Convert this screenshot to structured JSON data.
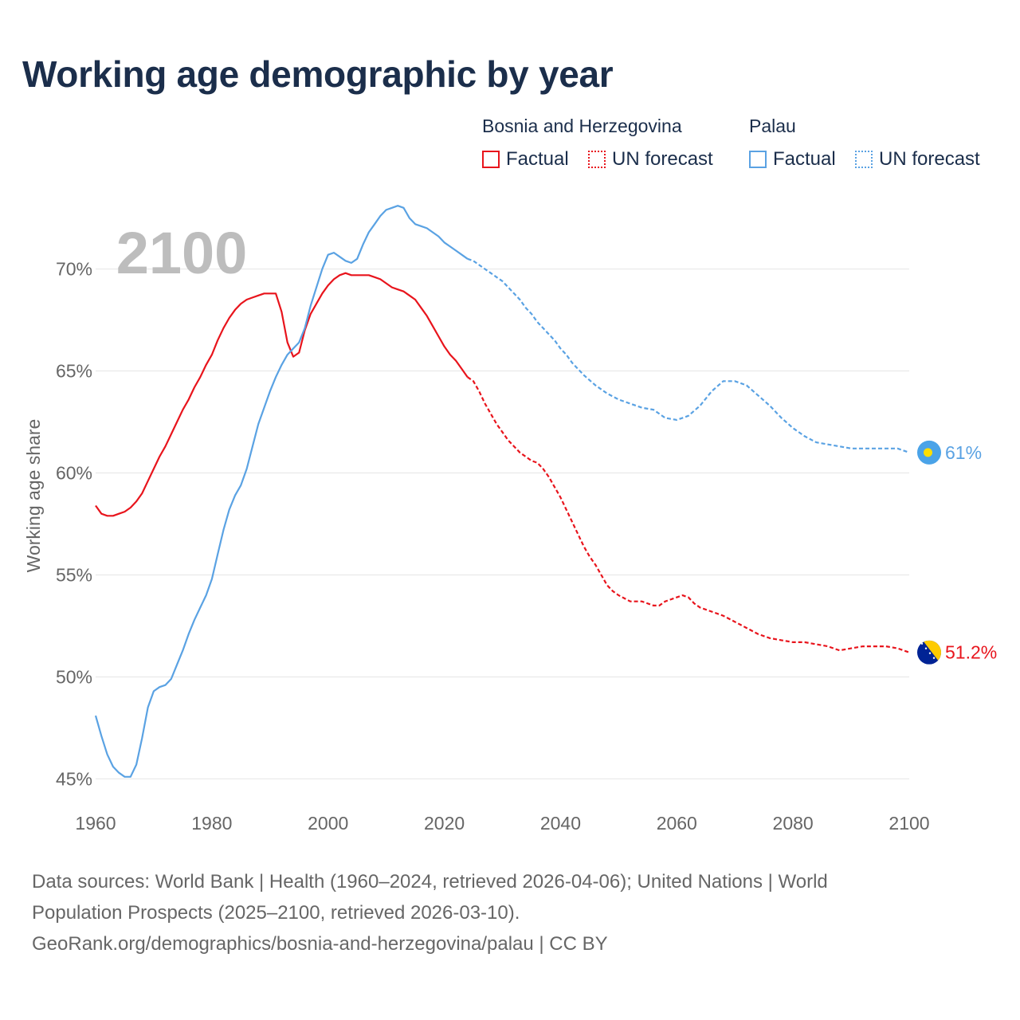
{
  "title": "Working age demographic by year",
  "legend": {
    "groups": [
      {
        "country": "Bosnia and Herzegovina",
        "color": "#e8141c",
        "factual_label": "Factual",
        "forecast_label": "UN forecast"
      },
      {
        "country": "Palau",
        "color": "#5aa2e3",
        "factual_label": "Factual",
        "forecast_label": "UN forecast"
      }
    ]
  },
  "footer": {
    "line1": "Data sources: World Bank | Health (1960–2024, retrieved 2026-04-06); United Nations | World",
    "line2": "Population Prospects (2025–2100, retrieved 2026-03-10).",
    "line3": "GeoRank.org/demographics/bosnia-and-herzegovina/palau | CC BY"
  },
  "chart_data": {
    "type": "line",
    "year_watermark": "2100",
    "ylabel": "Working age share",
    "xlabel": "",
    "xlim": [
      1960,
      2100
    ],
    "ylim": [
      44,
      73.5
    ],
    "x_ticks": [
      1960,
      1980,
      2000,
      2020,
      2040,
      2060,
      2080,
      2100
    ],
    "y_ticks": [
      45,
      50,
      55,
      60,
      65,
      70
    ],
    "y_tick_labels": [
      "45%",
      "50%",
      "55%",
      "60%",
      "65%",
      "70%"
    ],
    "grid": true,
    "forecast_start": 2024,
    "series": [
      {
        "name": "Bosnia and Herzegovina",
        "color": "#e8141c",
        "end_label": "51.2%",
        "end_marker": "bosnia-flag",
        "points": [
          [
            1960,
            58.4
          ],
          [
            1961,
            58
          ],
          [
            1962,
            57.9
          ],
          [
            1963,
            57.9
          ],
          [
            1964,
            58
          ],
          [
            1965,
            58.1
          ],
          [
            1966,
            58.3
          ],
          [
            1967,
            58.6
          ],
          [
            1968,
            59
          ],
          [
            1969,
            59.6
          ],
          [
            1970,
            60.2
          ],
          [
            1971,
            60.8
          ],
          [
            1972,
            61.3
          ],
          [
            1973,
            61.9
          ],
          [
            1974,
            62.5
          ],
          [
            1975,
            63.1
          ],
          [
            1976,
            63.6
          ],
          [
            1977,
            64.2
          ],
          [
            1978,
            64.7
          ],
          [
            1979,
            65.3
          ],
          [
            1980,
            65.8
          ],
          [
            1981,
            66.5
          ],
          [
            1982,
            67.1
          ],
          [
            1983,
            67.6
          ],
          [
            1984,
            68
          ],
          [
            1985,
            68.3
          ],
          [
            1986,
            68.5
          ],
          [
            1987,
            68.6
          ],
          [
            1988,
            68.7
          ],
          [
            1989,
            68.8
          ],
          [
            1990,
            68.8
          ],
          [
            1991,
            68.8
          ],
          [
            1992,
            67.9
          ],
          [
            1993,
            66.4
          ],
          [
            1994,
            65.7
          ],
          [
            1995,
            65.9
          ],
          [
            1996,
            67
          ],
          [
            1997,
            67.8
          ],
          [
            1998,
            68.3
          ],
          [
            1999,
            68.8
          ],
          [
            2000,
            69.2
          ],
          [
            2001,
            69.5
          ],
          [
            2002,
            69.7
          ],
          [
            2003,
            69.8
          ],
          [
            2004,
            69.7
          ],
          [
            2005,
            69.7
          ],
          [
            2006,
            69.7
          ],
          [
            2007,
            69.7
          ],
          [
            2008,
            69.6
          ],
          [
            2009,
            69.5
          ],
          [
            2010,
            69.3
          ],
          [
            2011,
            69.1
          ],
          [
            2012,
            69
          ],
          [
            2013,
            68.9
          ],
          [
            2014,
            68.7
          ],
          [
            2015,
            68.5
          ],
          [
            2016,
            68.1
          ],
          [
            2017,
            67.7
          ],
          [
            2018,
            67.2
          ],
          [
            2019,
            66.7
          ],
          [
            2020,
            66.2
          ],
          [
            2021,
            65.8
          ],
          [
            2022,
            65.5
          ],
          [
            2023,
            65.1
          ],
          [
            2024,
            64.7
          ],
          [
            2025,
            64.5
          ],
          [
            2026,
            64
          ],
          [
            2027,
            63.4
          ],
          [
            2028,
            62.9
          ],
          [
            2029,
            62.4
          ],
          [
            2030,
            62
          ],
          [
            2031,
            61.6
          ],
          [
            2032,
            61.3
          ],
          [
            2033,
            61
          ],
          [
            2034,
            60.8
          ],
          [
            2035,
            60.6
          ],
          [
            2036,
            60.5
          ],
          [
            2037,
            60.2
          ],
          [
            2038,
            59.8
          ],
          [
            2039,
            59.3
          ],
          [
            2040,
            58.8
          ],
          [
            2041,
            58.2
          ],
          [
            2042,
            57.6
          ],
          [
            2043,
            57
          ],
          [
            2044,
            56.4
          ],
          [
            2045,
            55.9
          ],
          [
            2046,
            55.5
          ],
          [
            2047,
            55
          ],
          [
            2048,
            54.5
          ],
          [
            2049,
            54.2
          ],
          [
            2050,
            54
          ],
          [
            2052,
            53.7
          ],
          [
            2054,
            53.7
          ],
          [
            2056,
            53.5
          ],
          [
            2057,
            53.5
          ],
          [
            2058,
            53.7
          ],
          [
            2060,
            53.9
          ],
          [
            2061,
            54
          ],
          [
            2062,
            53.9
          ],
          [
            2063,
            53.6
          ],
          [
            2064,
            53.4
          ],
          [
            2066,
            53.2
          ],
          [
            2068,
            53
          ],
          [
            2070,
            52.7
          ],
          [
            2072,
            52.4
          ],
          [
            2074,
            52.1
          ],
          [
            2076,
            51.9
          ],
          [
            2078,
            51.8
          ],
          [
            2080,
            51.7
          ],
          [
            2082,
            51.7
          ],
          [
            2084,
            51.6
          ],
          [
            2086,
            51.5
          ],
          [
            2088,
            51.3
          ],
          [
            2090,
            51.4
          ],
          [
            2092,
            51.5
          ],
          [
            2094,
            51.5
          ],
          [
            2096,
            51.5
          ],
          [
            2098,
            51.4
          ],
          [
            2100,
            51.2
          ]
        ]
      },
      {
        "name": "Palau",
        "color": "#5aa2e3",
        "end_label": "61%",
        "end_marker": "palau-flag",
        "points": [
          [
            1960,
            48.1
          ],
          [
            1961,
            47.1
          ],
          [
            1962,
            46.2
          ],
          [
            1963,
            45.6
          ],
          [
            1964,
            45.3
          ],
          [
            1965,
            45.1
          ],
          [
            1966,
            45.1
          ],
          [
            1967,
            45.7
          ],
          [
            1968,
            47
          ],
          [
            1969,
            48.5
          ],
          [
            1970,
            49.3
          ],
          [
            1971,
            49.5
          ],
          [
            1972,
            49.6
          ],
          [
            1973,
            49.9
          ],
          [
            1974,
            50.6
          ],
          [
            1975,
            51.3
          ],
          [
            1976,
            52.1
          ],
          [
            1977,
            52.8
          ],
          [
            1978,
            53.4
          ],
          [
            1979,
            54
          ],
          [
            1980,
            54.8
          ],
          [
            1981,
            56
          ],
          [
            1982,
            57.2
          ],
          [
            1983,
            58.2
          ],
          [
            1984,
            58.9
          ],
          [
            1985,
            59.4
          ],
          [
            1986,
            60.2
          ],
          [
            1987,
            61.3
          ],
          [
            1988,
            62.4
          ],
          [
            1989,
            63.2
          ],
          [
            1990,
            64
          ],
          [
            1991,
            64.7
          ],
          [
            1992,
            65.3
          ],
          [
            1993,
            65.8
          ],
          [
            1994,
            66.1
          ],
          [
            1995,
            66.4
          ],
          [
            1996,
            67.1
          ],
          [
            1997,
            68.2
          ],
          [
            1998,
            69.1
          ],
          [
            1999,
            70
          ],
          [
            2000,
            70.7
          ],
          [
            2001,
            70.8
          ],
          [
            2002,
            70.6
          ],
          [
            2003,
            70.4
          ],
          [
            2004,
            70.3
          ],
          [
            2005,
            70.5
          ],
          [
            2006,
            71.2
          ],
          [
            2007,
            71.8
          ],
          [
            2008,
            72.2
          ],
          [
            2009,
            72.6
          ],
          [
            2010,
            72.9
          ],
          [
            2011,
            73
          ],
          [
            2012,
            73.1
          ],
          [
            2013,
            73
          ],
          [
            2014,
            72.5
          ],
          [
            2015,
            72.2
          ],
          [
            2016,
            72.1
          ],
          [
            2017,
            72
          ],
          [
            2018,
            71.8
          ],
          [
            2019,
            71.6
          ],
          [
            2020,
            71.3
          ],
          [
            2021,
            71.1
          ],
          [
            2022,
            70.9
          ],
          [
            2023,
            70.7
          ],
          [
            2024,
            70.5
          ],
          [
            2025,
            70.4
          ],
          [
            2026,
            70.2
          ],
          [
            2027,
            70
          ],
          [
            2028,
            69.8
          ],
          [
            2029,
            69.6
          ],
          [
            2030,
            69.4
          ],
          [
            2031,
            69.1
          ],
          [
            2032,
            68.8
          ],
          [
            2033,
            68.5
          ],
          [
            2034,
            68.1
          ],
          [
            2035,
            67.8
          ],
          [
            2036,
            67.4
          ],
          [
            2037,
            67.1
          ],
          [
            2038,
            66.8
          ],
          [
            2039,
            66.5
          ],
          [
            2040,
            66.1
          ],
          [
            2041,
            65.8
          ],
          [
            2042,
            65.4
          ],
          [
            2043,
            65.1
          ],
          [
            2044,
            64.8
          ],
          [
            2046,
            64.3
          ],
          [
            2048,
            63.9
          ],
          [
            2050,
            63.6
          ],
          [
            2052,
            63.4
          ],
          [
            2054,
            63.2
          ],
          [
            2056,
            63.1
          ],
          [
            2058,
            62.7
          ],
          [
            2060,
            62.6
          ],
          [
            2062,
            62.8
          ],
          [
            2064,
            63.3
          ],
          [
            2066,
            64
          ],
          [
            2068,
            64.5
          ],
          [
            2070,
            64.5
          ],
          [
            2072,
            64.3
          ],
          [
            2074,
            63.8
          ],
          [
            2076,
            63.3
          ],
          [
            2078,
            62.7
          ],
          [
            2080,
            62.2
          ],
          [
            2082,
            61.8
          ],
          [
            2084,
            61.5
          ],
          [
            2086,
            61.4
          ],
          [
            2088,
            61.3
          ],
          [
            2090,
            61.2
          ],
          [
            2092,
            61.2
          ],
          [
            2094,
            61.2
          ],
          [
            2096,
            61.2
          ],
          [
            2098,
            61.2
          ],
          [
            2100,
            61
          ]
        ]
      }
    ]
  }
}
